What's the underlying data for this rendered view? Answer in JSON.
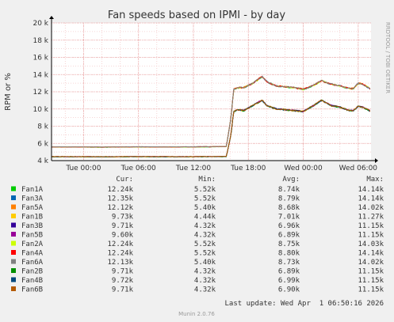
{
  "chart_data": {
    "type": "line",
    "title": "Fan speeds based on IPMI - by day",
    "ylabel": "RPM or %",
    "xlabel": "",
    "ylim": [
      4000,
      20000
    ],
    "ytick_labels": [
      "4 k",
      "6 k",
      "8 k",
      "10 k",
      "12 k",
      "14 k",
      "16 k",
      "18 k",
      "20 k"
    ],
    "ytick_values": [
      4000,
      6000,
      8000,
      10000,
      12000,
      14000,
      16000,
      18000,
      20000
    ],
    "x_range_hours": [
      -3.5,
      31.4
    ],
    "x_ticks": [
      {
        "label": "Tue 00:00",
        "hour": 0
      },
      {
        "label": "Tue 06:00",
        "hour": 6
      },
      {
        "label": "Tue 12:00",
        "hour": 12
      },
      {
        "label": "Tue 18:00",
        "hour": 18
      },
      {
        "label": "Wed 00:00",
        "hour": 24
      },
      {
        "label": "Wed 06:00",
        "hour": 30
      }
    ],
    "grid": true,
    "side_label": "RRDTOOL / TOBI OETIKER",
    "legend_headers": {
      "cur": "Cur:",
      "min": "Min:",
      "avg": "Avg:",
      "max": "Max:"
    },
    "series": [
      {
        "name": "Fan1A",
        "color": "#00cc00",
        "cur": "12.24k",
        "min": "5.52k",
        "avg": "8.74k",
        "max": "14.14k",
        "group": "high"
      },
      {
        "name": "Fan3A",
        "color": "#0066b3",
        "cur": "12.35k",
        "min": "5.52k",
        "avg": "8.79k",
        "max": "14.14k",
        "group": "high"
      },
      {
        "name": "Fan5A",
        "color": "#ff8000",
        "cur": "12.12k",
        "min": "5.40k",
        "avg": "8.68k",
        "max": "14.02k",
        "group": "high"
      },
      {
        "name": "Fan1B",
        "color": "#ffcc00",
        "cur": "9.73k",
        "min": "4.44k",
        "avg": "7.01k",
        "max": "11.27k",
        "group": "low"
      },
      {
        "name": "Fan3B",
        "color": "#330099",
        "cur": "9.71k",
        "min": "4.32k",
        "avg": "6.96k",
        "max": "11.15k",
        "group": "low"
      },
      {
        "name": "Fan5B",
        "color": "#990099",
        "cur": "9.60k",
        "min": "4.32k",
        "avg": "6.89k",
        "max": "11.15k",
        "group": "low"
      },
      {
        "name": "Fan2A",
        "color": "#ccff00",
        "cur": "12.24k",
        "min": "5.52k",
        "avg": "8.75k",
        "max": "14.03k",
        "group": "high"
      },
      {
        "name": "Fan4A",
        "color": "#ff0000",
        "cur": "12.24k",
        "min": "5.52k",
        "avg": "8.80k",
        "max": "14.14k",
        "group": "high"
      },
      {
        "name": "Fan6A",
        "color": "#808080",
        "cur": "12.13k",
        "min": "5.40k",
        "avg": "8.73k",
        "max": "14.02k",
        "group": "high"
      },
      {
        "name": "Fan2B",
        "color": "#008f00",
        "cur": "9.71k",
        "min": "4.32k",
        "avg": "6.89k",
        "max": "11.15k",
        "group": "low"
      },
      {
        "name": "Fan4B",
        "color": "#00487d",
        "cur": "9.72k",
        "min": "4.32k",
        "avg": "6.99k",
        "max": "11.15k",
        "group": "low"
      },
      {
        "name": "Fan6B",
        "color": "#b35a00",
        "cur": "9.71k",
        "min": "4.32k",
        "avg": "6.90k",
        "max": "11.15k",
        "group": "low"
      }
    ],
    "profiles": {
      "high": [
        [
          -3.5,
          5600
        ],
        [
          0,
          5600
        ],
        [
          2,
          5580
        ],
        [
          4,
          5600
        ],
        [
          6,
          5620
        ],
        [
          8,
          5600
        ],
        [
          10,
          5600
        ],
        [
          12,
          5620
        ],
        [
          14,
          5630
        ],
        [
          15.6,
          5650
        ],
        [
          16.1,
          9000
        ],
        [
          16.4,
          12300
        ],
        [
          17,
          12500
        ],
        [
          17.5,
          12500
        ],
        [
          18.5,
          13000
        ],
        [
          19.5,
          13800
        ],
        [
          20,
          13200
        ],
        [
          21,
          12700
        ],
        [
          22,
          12600
        ],
        [
          23,
          12500
        ],
        [
          24,
          12300
        ],
        [
          25,
          12700
        ],
        [
          26,
          13300
        ],
        [
          26.5,
          13100
        ],
        [
          27,
          12900
        ],
        [
          28,
          12700
        ],
        [
          29,
          12400
        ],
        [
          29.5,
          12400
        ],
        [
          30,
          13000
        ],
        [
          30.5,
          12900
        ],
        [
          31.4,
          12300
        ]
      ],
      "low": [
        [
          -3.5,
          4440
        ],
        [
          0,
          4440
        ],
        [
          2,
          4430
        ],
        [
          4,
          4440
        ],
        [
          6,
          4450
        ],
        [
          8,
          4440
        ],
        [
          10,
          4440
        ],
        [
          12,
          4450
        ],
        [
          14,
          4450
        ],
        [
          15.6,
          4460
        ],
        [
          16.1,
          7000
        ],
        [
          16.4,
          9700
        ],
        [
          17,
          9900
        ],
        [
          17.5,
          9800
        ],
        [
          18.5,
          10400
        ],
        [
          19.5,
          11000
        ],
        [
          20,
          10400
        ],
        [
          21,
          10000
        ],
        [
          22,
          9900
        ],
        [
          23,
          9800
        ],
        [
          24,
          9700
        ],
        [
          25,
          10300
        ],
        [
          26,
          11000
        ],
        [
          26.5,
          10700
        ],
        [
          27,
          10400
        ],
        [
          28,
          10200
        ],
        [
          29,
          9800
        ],
        [
          29.5,
          9800
        ],
        [
          30,
          10300
        ],
        [
          30.5,
          10200
        ],
        [
          31.4,
          9700
        ]
      ]
    },
    "footer_last_update": "Last update: Wed Apr  1 06:50:16 2026",
    "footer_version": "Munin 2.0.76"
  }
}
